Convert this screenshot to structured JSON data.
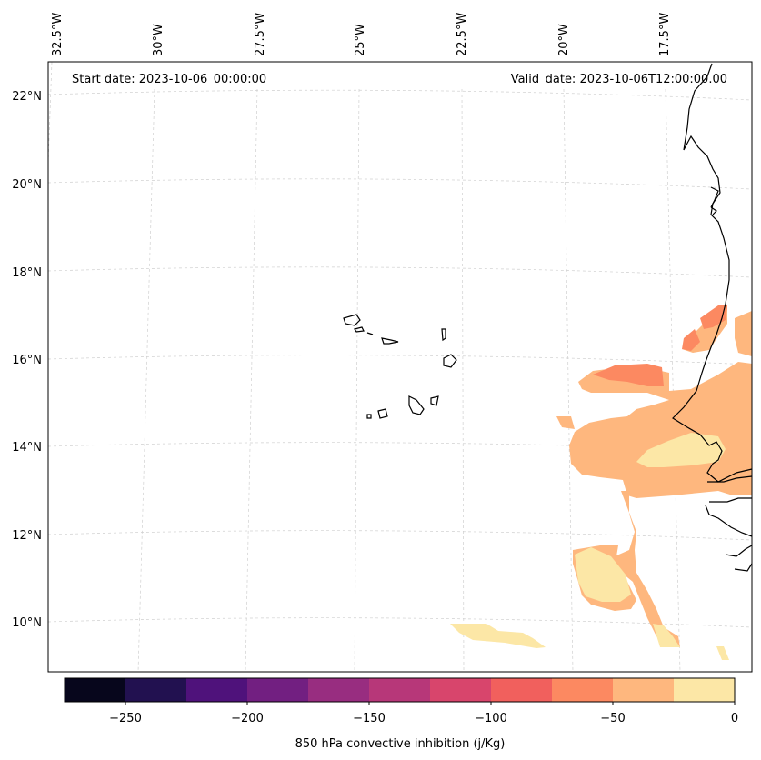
{
  "map": {
    "start_date": "Start date: 2023-10-06_00:00:00",
    "valid_date": "Valid_date: 2023-10-06T12:00:00.00",
    "lon_labels": [
      "32.5°W",
      "30°W",
      "27.5°W",
      "25°W",
      "22.5°W",
      "20°W",
      "17.5°W"
    ],
    "lat_labels": [
      "22°N",
      "20°N",
      "18°N",
      "16°N",
      "14°N",
      "12°N",
      "10°N"
    ],
    "gridlines": true,
    "coastline_color": "#000000"
  },
  "colorbar": {
    "label": "850 hPa convective inhibition (j/Kg)",
    "tick_labels": [
      "−250",
      "−200",
      "−150",
      "−100",
      "−50",
      "0"
    ],
    "levels": [
      -275,
      -250,
      -225,
      -200,
      -175,
      -150,
      -125,
      -100,
      -75,
      -50,
      -25,
      0
    ],
    "colors": [
      "#07061c",
      "#221150",
      "#4f127b",
      "#721f81",
      "#982d80",
      "#b73779",
      "#d8456c",
      "#f1605d",
      "#fc8961",
      "#feb77e",
      "#fce7a6"
    ],
    "colormap": "magma"
  }
}
